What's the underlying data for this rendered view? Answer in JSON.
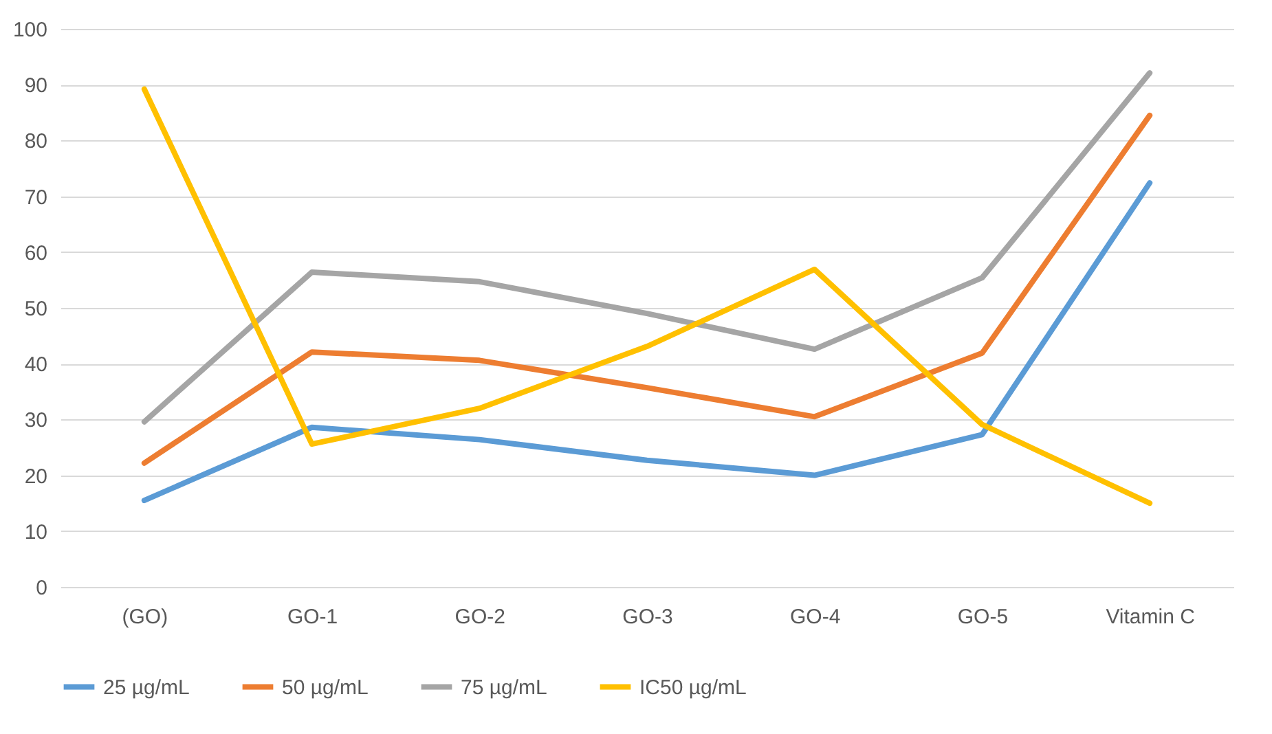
{
  "chart_data": {
    "type": "line",
    "categories": [
      "(GO)",
      "GO-1",
      "GO-2",
      "GO-3",
      "GO-4",
      "GO-5",
      "Vitamin C"
    ],
    "series": [
      {
        "name": "25 µg/mL",
        "color": "#5b9bd5",
        "values": [
          15.5,
          28.6,
          26.4,
          22.7,
          20,
          27.3,
          72.4
        ]
      },
      {
        "name": "50 µg/mL",
        "color": "#ed7d31",
        "values": [
          22.2,
          42.1,
          40.6,
          35.7,
          30.5,
          41.9,
          84.5
        ]
      },
      {
        "name": "75 µg/mL",
        "color": "#a5a5a5",
        "values": [
          29.6,
          56.4,
          54.7,
          49,
          42.6,
          55.4,
          92.1
        ]
      },
      {
        "name": "IC50 µg/mL",
        "color": "#ffc000",
        "values": [
          89.2,
          25.6,
          32,
          43.1,
          56.9,
          29.1,
          15
        ]
      }
    ],
    "ylim": [
      0,
      100
    ],
    "yticks": [
      0,
      10,
      20,
      30,
      40,
      50,
      60,
      70,
      80,
      90,
      100
    ],
    "grid": "y",
    "legend": "bottom",
    "marker": "none",
    "line_style": "solid"
  }
}
